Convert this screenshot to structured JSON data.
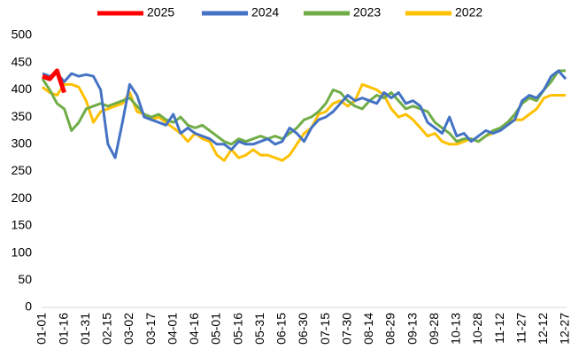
{
  "chart_data": {
    "type": "line",
    "categories": [
      "01-01",
      null,
      null,
      "01-16",
      null,
      null,
      "01-31",
      null,
      null,
      "02-15",
      null,
      null,
      "03-02",
      null,
      null,
      "03-17",
      null,
      null,
      "04-01",
      null,
      null,
      "04-16",
      null,
      null,
      "05-01",
      null,
      null,
      "05-16",
      null,
      null,
      "05-31",
      null,
      null,
      "06-15",
      null,
      null,
      "06-30",
      null,
      null,
      "07-15",
      null,
      null,
      "07-30",
      null,
      null,
      "08-14",
      null,
      null,
      "08-29",
      null,
      null,
      "09-13",
      null,
      null,
      "09-28",
      null,
      null,
      "10-13",
      null,
      null,
      "10-28",
      null,
      null,
      "11-12",
      null,
      null,
      "11-27",
      null,
      null,
      "12-12",
      null,
      null,
      "12-27"
    ],
    "series": [
      {
        "name": "2025",
        "color": "#ff0000",
        "values": [
          425,
          420,
          435,
          395,
          null,
          null,
          null,
          null,
          null,
          null,
          null,
          null,
          null,
          null,
          null,
          null,
          null,
          null,
          null,
          null,
          null,
          null,
          null,
          null,
          null,
          null,
          null,
          null,
          null,
          null,
          null,
          null,
          null,
          null,
          null,
          null,
          null,
          null,
          null,
          null,
          null,
          null,
          null,
          null,
          null,
          null,
          null,
          null,
          null,
          null,
          null,
          null,
          null,
          null,
          null,
          null,
          null,
          null,
          null,
          null,
          null,
          null,
          null,
          null,
          null,
          null,
          null,
          null,
          null,
          null,
          null,
          null,
          null
        ]
      },
      {
        "name": "2024",
        "color": "#4472c4",
        "values": [
          430,
          425,
          430,
          415,
          430,
          425,
          428,
          425,
          400,
          300,
          275,
          340,
          410,
          390,
          350,
          345,
          340,
          335,
          355,
          320,
          330,
          320,
          315,
          310,
          300,
          300,
          290,
          305,
          300,
          300,
          305,
          310,
          300,
          305,
          330,
          320,
          305,
          330,
          345,
          350,
          360,
          375,
          390,
          380,
          385,
          380,
          375,
          395,
          385,
          395,
          375,
          380,
          370,
          340,
          330,
          320,
          350,
          315,
          320,
          305,
          315,
          325,
          320,
          325,
          335,
          345,
          380,
          390,
          385,
          400,
          425,
          435,
          420
        ]
      },
      {
        "name": "2023",
        "color": "#70ad47",
        "values": [
          420,
          400,
          375,
          365,
          325,
          340,
          365,
          370,
          375,
          370,
          375,
          380,
          385,
          370,
          355,
          350,
          355,
          345,
          340,
          350,
          335,
          330,
          335,
          325,
          315,
          305,
          300,
          310,
          305,
          310,
          315,
          310,
          315,
          310,
          320,
          330,
          345,
          350,
          360,
          375,
          400,
          395,
          380,
          370,
          365,
          380,
          390,
          385,
          395,
          380,
          365,
          370,
          365,
          360,
          340,
          330,
          320,
          305,
          310,
          310,
          305,
          315,
          325,
          330,
          340,
          355,
          375,
          385,
          380,
          400,
          415,
          435,
          435
        ]
      },
      {
        "name": "2022",
        "color": "#ffc000",
        "values": [
          405,
          395,
          390,
          410,
          410,
          405,
          380,
          340,
          360,
          365,
          370,
          375,
          395,
          360,
          355,
          345,
          350,
          340,
          330,
          320,
          305,
          320,
          310,
          305,
          280,
          270,
          290,
          275,
          280,
          290,
          280,
          280,
          275,
          270,
          280,
          300,
          320,
          330,
          355,
          360,
          375,
          380,
          370,
          380,
          410,
          405,
          400,
          390,
          365,
          350,
          355,
          345,
          330,
          315,
          320,
          305,
          300,
          300,
          305,
          310,
          305,
          315,
          320,
          330,
          340,
          345,
          345,
          355,
          365,
          385,
          390,
          390,
          390
        ]
      }
    ],
    "ylim": [
      0,
      500
    ],
    "yticks": [
      0,
      50,
      100,
      150,
      200,
      250,
      300,
      350,
      400,
      450,
      500
    ],
    "grid": false
  }
}
